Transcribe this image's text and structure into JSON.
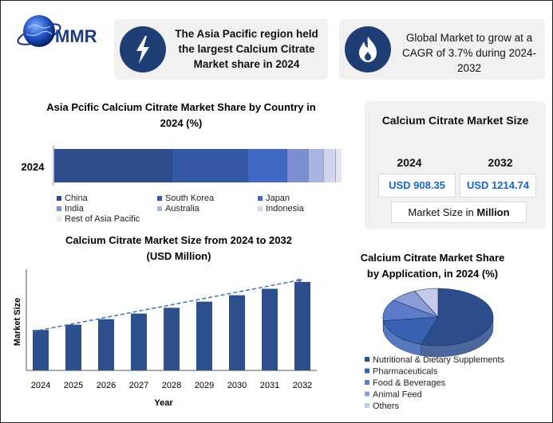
{
  "logo": {
    "text": "MMR"
  },
  "info_cards": [
    {
      "icon": "lightning-icon",
      "text": "The Asia Pacific region held the largest Calcium Citrate Market share in 2024"
    },
    {
      "icon": "flame-icon",
      "text": "Global Market to grow at a CAGR of 3.7% during 2024-2032"
    }
  ],
  "market_size": {
    "title": "Calcium Citrate Market Size",
    "year1": "2024",
    "value1": "USD 908.35",
    "year2": "2032",
    "value2": "USD 1214.74",
    "unit_prefix": "Market Size in ",
    "unit_bold": "Million"
  },
  "colors": {
    "navy": "#1f3f74",
    "bar": "#2d4f8e"
  },
  "chart_data": [
    {
      "type": "bar",
      "orientation": "horizontal-stacked",
      "title": "Asia Pcific Calcium Citrate Market Share by Country in 2024 (%)",
      "categories": [
        "2024"
      ],
      "series": [
        {
          "name": "China",
          "values": [
            39
          ],
          "color": "#2d4d8c"
        },
        {
          "name": "South Korea",
          "values": [
            25
          ],
          "color": "#3659a6"
        },
        {
          "name": "Japan",
          "values": [
            13
          ],
          "color": "#4169c3"
        },
        {
          "name": "India",
          "values": [
            7
          ],
          "color": "#7b8fd0"
        },
        {
          "name": "Australia",
          "values": [
            5
          ],
          "color": "#a9b5df"
        },
        {
          "name": "Indonesia",
          "values": [
            4
          ],
          "color": "#cfd5ec"
        },
        {
          "name": "Rest of Asia Pacific",
          "values": [
            2
          ],
          "color": "#e3e6f2"
        }
      ],
      "legend": "bottom"
    },
    {
      "type": "bar",
      "title": "Calcium Citrate Market Size from 2024 to 2032 (USD Million)",
      "xlabel": "Year",
      "ylabel": "Market Size",
      "categories": [
        "2024",
        "2025",
        "2026",
        "2027",
        "2028",
        "2029",
        "2030",
        "2031",
        "2032"
      ],
      "values": [
        908.35,
        942,
        977,
        1013,
        1050,
        1089,
        1130,
        1171,
        1214.74
      ],
      "ylim": [
        650,
        1260
      ],
      "trendline": "dashed"
    },
    {
      "type": "pie",
      "style": "3d",
      "title": "Calcium Citrate Market Share by Application, in 2024 (%)",
      "labels": [
        "Nutritional & Dietary Supplements",
        "Pharmaceuticals",
        "Food & Beverages",
        "Animal Feed",
        "Others"
      ],
      "values": [
        55,
        18,
        12,
        8,
        7
      ],
      "colors": [
        "#2d4d8c",
        "#3a62b3",
        "#5d7bc8",
        "#8b9cd6",
        "#c3cbe8"
      ],
      "legend": "bottom"
    }
  ]
}
